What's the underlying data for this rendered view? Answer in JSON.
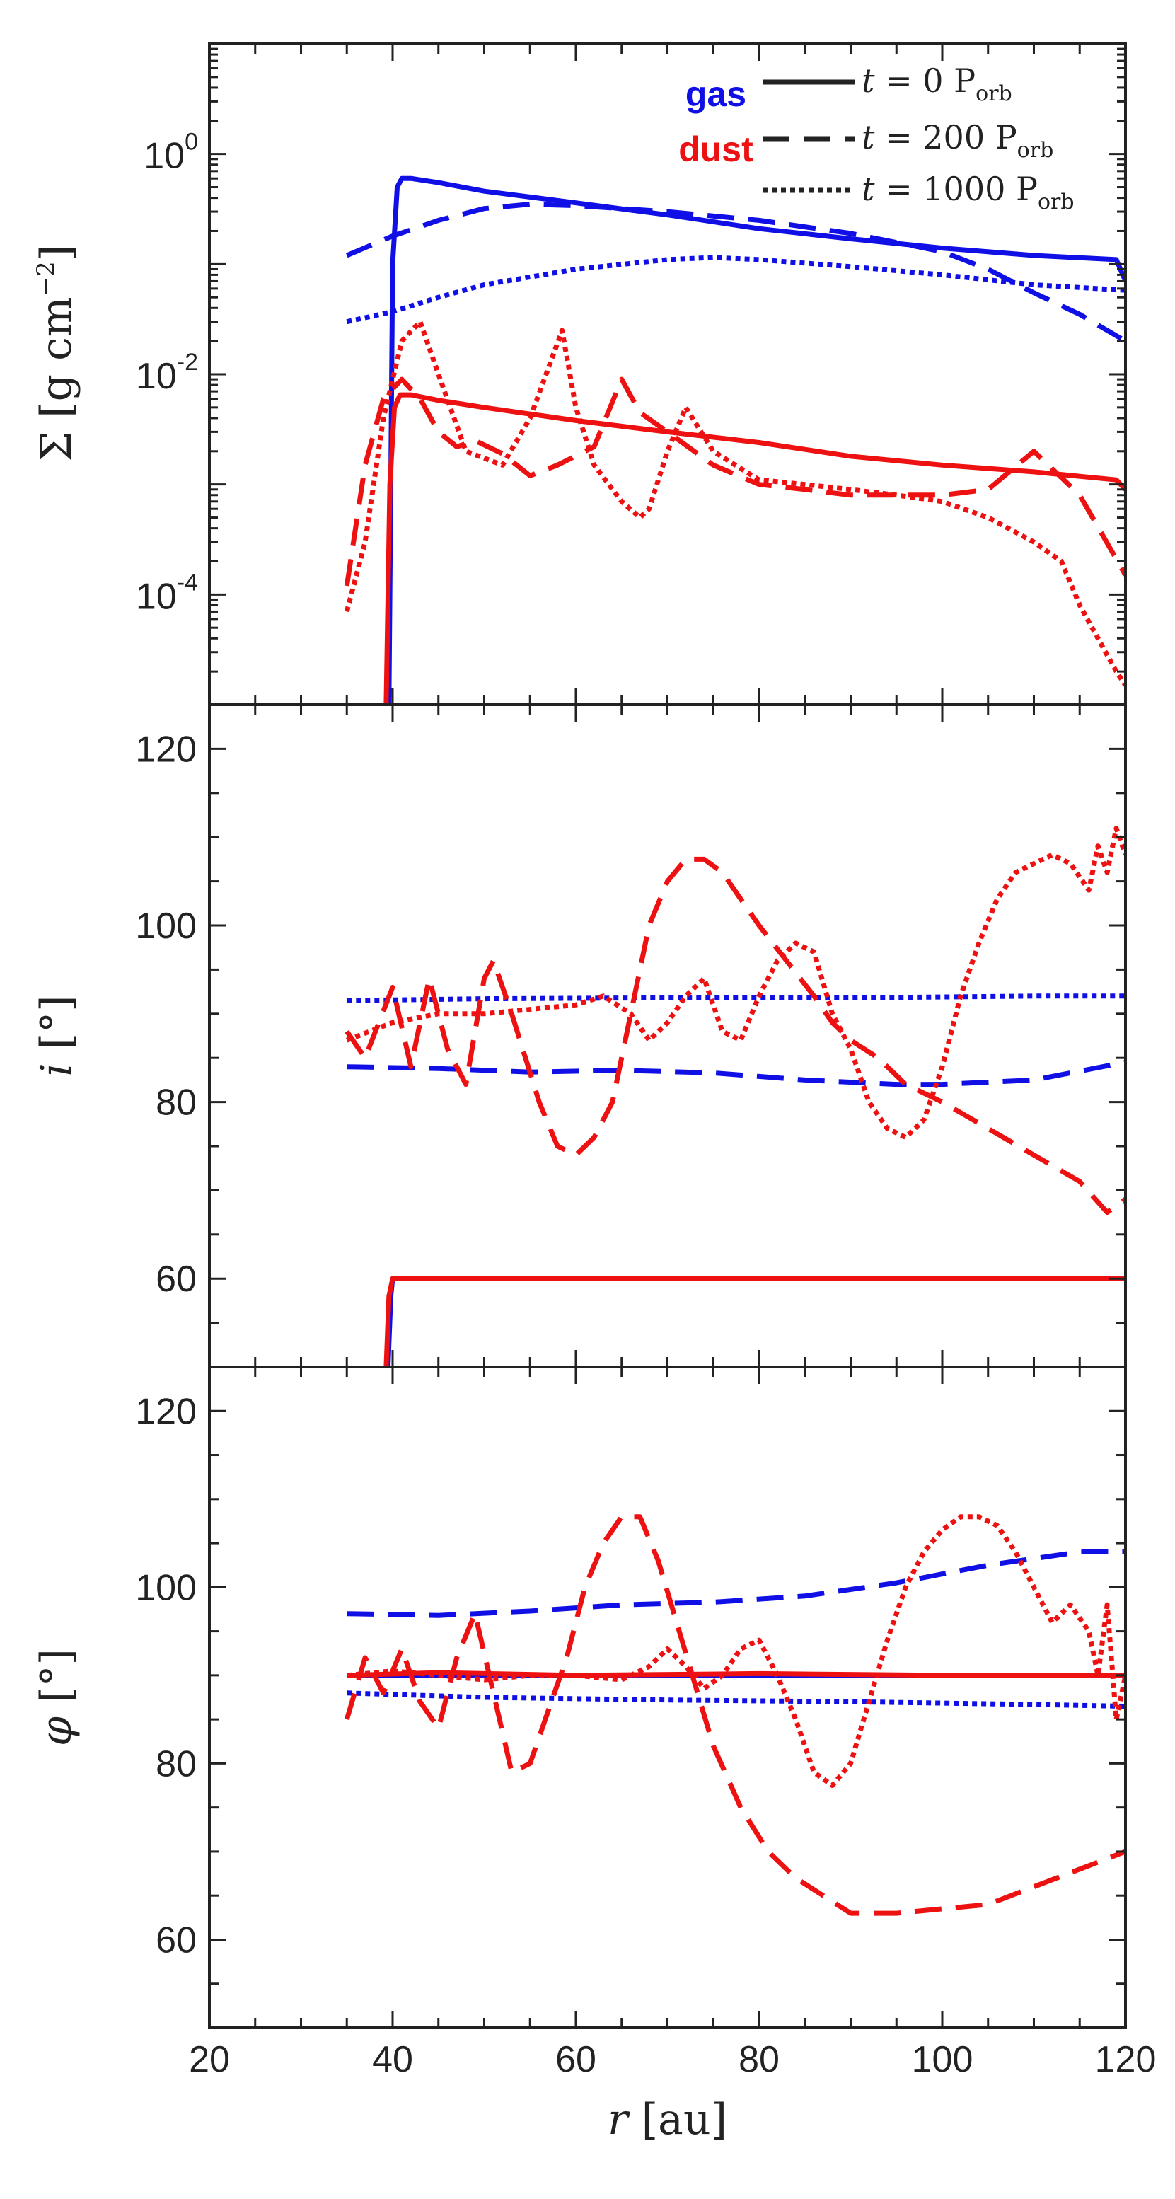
{
  "colors": {
    "gas": "#1010e6",
    "dust": "#ee1111",
    "axis": "#222222"
  },
  "legend": {
    "species": [
      {
        "label": "gas",
        "color": "#1010e6"
      },
      {
        "label": "dust",
        "color": "#ee1111"
      }
    ],
    "times": [
      {
        "style": "solid",
        "prefix": "t",
        "eq": " = 0 P",
        "sub": "orb"
      },
      {
        "style": "dashed",
        "prefix": "t",
        "eq": " = 200 P",
        "sub": "orb"
      },
      {
        "style": "dotted",
        "prefix": "t",
        "eq": " = 1000 P",
        "sub": "orb"
      }
    ]
  },
  "chart_data": [
    {
      "type": "line",
      "panel": "surface-density",
      "ylabel": "Σ [g cm",
      "ylabel_sup": "−2",
      "ylabel_tail": "]",
      "yscale": "log",
      "xlim": [
        20,
        120
      ],
      "ylim": [
        1e-05,
        10
      ],
      "yticks": [
        {
          "value": 1,
          "base": "10",
          "exp": "0"
        },
        {
          "value": 0.01,
          "base": "10",
          "exp": "-2"
        },
        {
          "value": 0.0001,
          "base": "10",
          "exp": "-4"
        }
      ],
      "series": [
        {
          "species": "gas",
          "style": "solid",
          "x": [
            39.6,
            40.0,
            40.5,
            41.0,
            42,
            45,
            50,
            60,
            70,
            80,
            90,
            100,
            110,
            119,
            120
          ],
          "y": [
            1e-05,
            0.1,
            0.5,
            0.6,
            0.6,
            0.55,
            0.46,
            0.36,
            0.28,
            0.21,
            0.17,
            0.14,
            0.12,
            0.11,
            0.07
          ]
        },
        {
          "species": "gas",
          "style": "dashed",
          "x": [
            35,
            40,
            45,
            50,
            55,
            60,
            70,
            80,
            90,
            100,
            105,
            110,
            115,
            120
          ],
          "y": [
            0.12,
            0.18,
            0.25,
            0.32,
            0.35,
            0.34,
            0.3,
            0.25,
            0.19,
            0.13,
            0.09,
            0.055,
            0.035,
            0.02
          ]
        },
        {
          "species": "gas",
          "style": "dotted",
          "x": [
            35,
            40,
            45,
            50,
            60,
            70,
            75,
            80,
            90,
            100,
            110,
            120
          ],
          "y": [
            0.03,
            0.037,
            0.05,
            0.065,
            0.09,
            0.11,
            0.115,
            0.11,
            0.095,
            0.08,
            0.065,
            0.058
          ]
        },
        {
          "species": "dust",
          "style": "solid",
          "x": [
            39.3,
            39.7,
            40.2,
            40.8,
            42,
            45,
            50,
            60,
            70,
            80,
            90,
            100,
            110,
            119,
            120
          ],
          "y": [
            1e-05,
            0.001,
            0.005,
            0.0065,
            0.0065,
            0.0058,
            0.005,
            0.0038,
            0.003,
            0.0024,
            0.0018,
            0.0015,
            0.0013,
            0.0011,
            0.0009
          ]
        },
        {
          "species": "dust",
          "style": "dashed",
          "x": [
            35,
            37,
            39,
            41,
            43,
            45,
            47,
            49,
            52,
            55,
            58,
            62,
            65,
            67,
            70,
            75,
            80,
            85,
            90,
            95,
            100,
            105,
            110,
            115,
            120
          ],
          "y": [
            0.00012,
            0.0015,
            0.006,
            0.009,
            0.006,
            0.003,
            0.0022,
            0.0025,
            0.0019,
            0.0012,
            0.0015,
            0.0022,
            0.009,
            0.0045,
            0.003,
            0.0015,
            0.001,
            0.0009,
            0.0008,
            0.0008,
            0.0008,
            0.0009,
            0.002,
            0.0008,
            0.00015
          ]
        },
        {
          "species": "dust",
          "style": "dotted",
          "x": [
            35,
            37,
            39,
            41,
            43,
            45,
            48,
            52,
            55,
            58.5,
            60,
            62,
            65,
            67,
            68,
            70,
            72,
            75,
            80,
            85,
            90,
            95,
            100,
            105,
            110,
            113,
            115,
            117,
            119,
            120
          ],
          "y": [
            7e-05,
            0.0003,
            0.004,
            0.02,
            0.03,
            0.01,
            0.002,
            0.0015,
            0.004,
            0.025,
            0.005,
            0.0015,
            0.0007,
            0.0005,
            0.0006,
            0.002,
            0.005,
            0.002,
            0.0011,
            0.001,
            0.0009,
            0.0008,
            0.0007,
            0.0005,
            0.0003,
            0.0002,
            8e-05,
            4e-05,
            2e-05,
            1.5e-05
          ]
        }
      ]
    },
    {
      "type": "line",
      "panel": "inclination",
      "ylabel_var": "i",
      "ylabel_unit": " [°]",
      "xlim": [
        20,
        120
      ],
      "ylim": [
        50,
        125
      ],
      "yticks": [
        60,
        80,
        100,
        120
      ],
      "series": [
        {
          "species": "gas",
          "style": "solid",
          "x": [
            39.5,
            39.8,
            40,
            60,
            80,
            100,
            120
          ],
          "y": [
            50,
            58,
            60,
            60,
            60,
            60,
            60
          ]
        },
        {
          "species": "gas",
          "style": "dashed",
          "x": [
            35,
            45,
            55,
            65,
            75,
            85,
            95,
            100,
            110,
            120
          ],
          "y": [
            84,
            83.8,
            83.4,
            83.6,
            83.3,
            82.5,
            82,
            82,
            82.5,
            84.5
          ]
        },
        {
          "species": "gas",
          "style": "dotted",
          "x": [
            35,
            50,
            70,
            90,
            110,
            120
          ],
          "y": [
            91.5,
            91.7,
            91.8,
            91.8,
            92,
            92
          ]
        },
        {
          "species": "dust",
          "style": "solid",
          "x": [
            39.3,
            39.6,
            40,
            60,
            80,
            100,
            120
          ],
          "y": [
            50,
            58,
            60,
            60,
            60,
            60,
            60
          ]
        },
        {
          "species": "dust",
          "style": "dashed",
          "x": [
            35,
            37,
            40,
            42,
            44,
            46,
            48,
            50,
            51,
            53,
            56,
            58,
            60,
            62,
            64,
            66,
            68,
            70,
            72,
            74,
            76,
            78,
            80,
            83,
            86,
            88,
            90,
            93,
            96,
            100,
            105,
            110,
            115,
            118,
            120
          ],
          "y": [
            88,
            85,
            93,
            84,
            94,
            86,
            82,
            94,
            96,
            90,
            80,
            75,
            74,
            76,
            80,
            90,
            100,
            105,
            107.5,
            107.5,
            106,
            103,
            100,
            96,
            92,
            89,
            87,
            85,
            82,
            80,
            77,
            74,
            71,
            67.5,
            69
          ]
        },
        {
          "species": "dust",
          "style": "dotted",
          "x": [
            35,
            40,
            45,
            50,
            55,
            60,
            63,
            66,
            68,
            70,
            72,
            74,
            76,
            78,
            80,
            82,
            84,
            86,
            88,
            90,
            92,
            94,
            96,
            98,
            100,
            102,
            104,
            106,
            108,
            110,
            112,
            114,
            116,
            117,
            118,
            119,
            120
          ],
          "y": [
            87,
            89,
            90,
            90,
            90.5,
            91,
            92,
            90,
            87,
            89,
            92,
            94,
            88,
            87,
            92,
            96,
            98,
            97,
            90,
            86,
            80,
            77,
            76,
            78,
            84,
            92,
            98,
            103,
            106,
            107,
            108,
            107,
            104,
            109,
            106,
            111,
            108
          ]
        }
      ]
    },
    {
      "type": "line",
      "panel": "azimuth",
      "ylabel_var": "φ",
      "ylabel_unit": " [°]",
      "xlim": [
        20,
        120
      ],
      "ylim": [
        50,
        125
      ],
      "yticks": [
        60,
        80,
        100,
        120
      ],
      "xticks": [
        20,
        40,
        60,
        80,
        100,
        120
      ],
      "xlabel_var": "r",
      "xlabel_unit": " [au]",
      "series": [
        {
          "species": "gas",
          "style": "solid",
          "x": [
            35,
            60,
            90,
            120
          ],
          "y": [
            90,
            90,
            90,
            90
          ]
        },
        {
          "species": "gas",
          "style": "dashed",
          "x": [
            35,
            45,
            55,
            65,
            75,
            85,
            95,
            105,
            115,
            120
          ],
          "y": [
            97,
            96.8,
            97.3,
            98,
            98.3,
            99,
            100.5,
            102.5,
            104,
            104
          ]
        },
        {
          "species": "gas",
          "style": "dotted",
          "x": [
            35,
            50,
            70,
            90,
            110,
            120
          ],
          "y": [
            88,
            87.5,
            87.2,
            87,
            86.7,
            86.5
          ]
        },
        {
          "species": "dust",
          "style": "solid",
          "x": [
            35,
            45,
            60,
            80,
            100,
            120
          ],
          "y": [
            90,
            90.3,
            90,
            90.2,
            90,
            90
          ]
        },
        {
          "species": "dust",
          "style": "dashed",
          "x": [
            35,
            37,
            39,
            41,
            43,
            45,
            47,
            49,
            51,
            53,
            55,
            57,
            59,
            61,
            63,
            65,
            67,
            69,
            71,
            73,
            75,
            78,
            81,
            84,
            87,
            90,
            95,
            100,
            105,
            110,
            115,
            120
          ],
          "y": [
            85,
            92,
            88,
            93,
            87,
            84,
            92,
            97,
            88,
            79,
            80,
            86,
            92,
            100,
            105,
            108,
            108,
            103,
            96,
            89,
            82,
            75,
            70,
            67,
            65,
            63,
            63,
            63.5,
            64,
            66,
            68,
            70
          ]
        },
        {
          "species": "dust",
          "style": "dotted",
          "x": [
            35,
            40,
            45,
            50,
            55,
            60,
            65,
            68,
            70,
            72,
            74,
            76,
            78,
            80,
            82,
            84,
            86,
            88,
            90,
            92,
            94,
            96,
            98,
            100,
            102,
            104,
            106,
            108,
            110,
            112,
            114,
            116,
            117,
            118,
            119,
            120
          ],
          "y": [
            90,
            90.5,
            90,
            89.5,
            90,
            90,
            89.5,
            91,
            93,
            91,
            88.5,
            90,
            93,
            94,
            90,
            85,
            79,
            77.5,
            80,
            87,
            94,
            100,
            104,
            106.5,
            108,
            108,
            107,
            104,
            100,
            96,
            98,
            95,
            90,
            98,
            85,
            90
          ]
        }
      ]
    }
  ]
}
